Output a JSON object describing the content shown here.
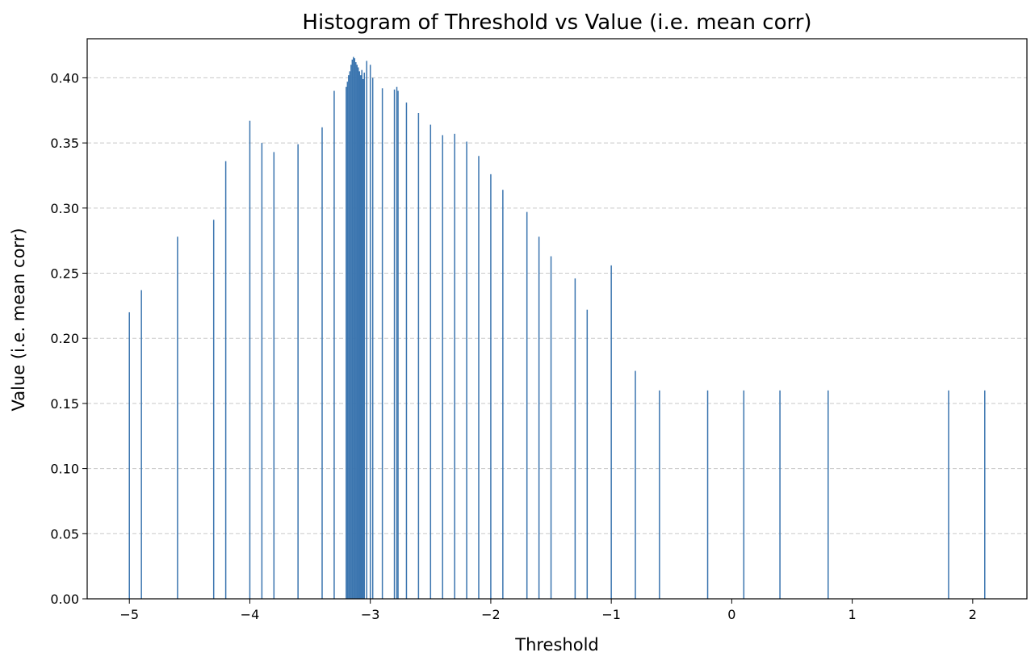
{
  "chart_data": {
    "type": "bar",
    "title": "Histogram of Threshold vs Value (i.e. mean corr)",
    "xlabel": "Threshold",
    "ylabel": "Value (i.e. mean corr)",
    "xlim": [
      -5.35,
      2.45
    ],
    "ylim": [
      0,
      0.43
    ],
    "grid": "y-dashed",
    "bar_color": "#3b75af",
    "x_ticks": [
      -5,
      -4,
      -3,
      -2,
      -1,
      0,
      1,
      2
    ],
    "x_tick_labels": [
      "−5",
      "−4",
      "−3",
      "−2",
      "−1",
      "0",
      "1",
      "2"
    ],
    "y_ticks": [
      0,
      0.05,
      0.1,
      0.15,
      0.2,
      0.25,
      0.3,
      0.35,
      0.4
    ],
    "y_tick_labels": [
      "0.00",
      "0.05",
      "0.10",
      "0.15",
      "0.20",
      "0.25",
      "0.30",
      "0.35",
      "0.40"
    ],
    "x": [
      -5.0,
      -4.9,
      -4.6,
      -4.3,
      -4.2,
      -4.0,
      -3.9,
      -3.8,
      -3.6,
      -3.4,
      -3.3,
      -3.2,
      -3.19,
      -3.18,
      -3.17,
      -3.16,
      -3.15,
      -3.14,
      -3.13,
      -3.12,
      -3.11,
      -3.1,
      -3.09,
      -3.08,
      -3.07,
      -3.06,
      -3.05,
      -3.03,
      -3.0,
      -2.98,
      -2.9,
      -2.8,
      -2.78,
      -2.77,
      -2.7,
      -2.6,
      -2.5,
      -2.4,
      -2.3,
      -2.2,
      -2.1,
      -2.0,
      -1.9,
      -1.7,
      -1.6,
      -1.5,
      -1.3,
      -1.2,
      -1.0,
      -0.8,
      -0.6,
      -0.2,
      0.1,
      0.4,
      0.8,
      1.8,
      2.1
    ],
    "values": [
      0.22,
      0.237,
      0.278,
      0.291,
      0.336,
      0.367,
      0.35,
      0.343,
      0.349,
      0.362,
      0.39,
      0.393,
      0.397,
      0.402,
      0.405,
      0.41,
      0.414,
      0.416,
      0.415,
      0.412,
      0.41,
      0.408,
      0.405,
      0.402,
      0.406,
      0.399,
      0.404,
      0.413,
      0.41,
      0.4,
      0.392,
      0.391,
      0.393,
      0.39,
      0.381,
      0.373,
      0.364,
      0.356,
      0.357,
      0.351,
      0.34,
      0.326,
      0.314,
      0.297,
      0.278,
      0.263,
      0.246,
      0.222,
      0.256,
      0.175,
      0.16,
      0.16,
      0.16,
      0.16,
      0.16,
      0.16,
      0.16
    ]
  }
}
